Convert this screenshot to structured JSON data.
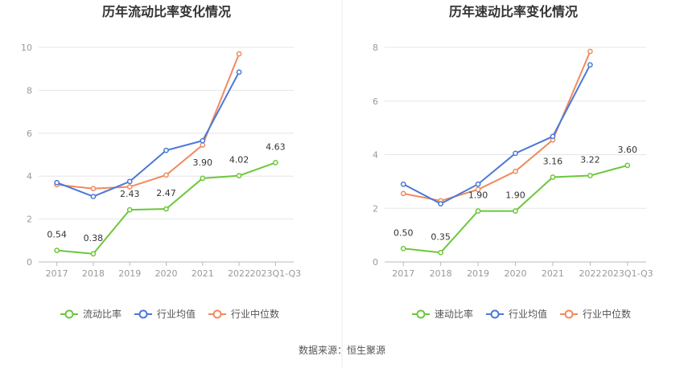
{
  "source": "数据来源：恒生聚源",
  "colors": {
    "company": "#6cc73a",
    "avg": "#4a78d8",
    "median": "#f08a5d",
    "grid": "#e6e6e6",
    "axis": "#bbbbbb"
  },
  "chart_data": [
    {
      "type": "line",
      "title": "历年流动比率变化情况",
      "categories": [
        "2017",
        "2018",
        "2019",
        "2020",
        "2021",
        "2022",
        "2023Q1-Q3"
      ],
      "ylim": [
        0,
        10
      ],
      "yticks": [
        "0",
        "2",
        "4",
        "6",
        "8",
        "10"
      ],
      "grid": true,
      "legend": "bottom",
      "series": [
        {
          "name": "流动比率",
          "color": "#6cc73a",
          "values": [
            0.54,
            0.38,
            2.43,
            2.47,
            3.9,
            4.02,
            4.63
          ],
          "labels": [
            "0.54",
            "0.38",
            "2.43",
            "2.47",
            "3.90",
            "4.02",
            "4.63"
          ]
        },
        {
          "name": "行业均值",
          "color": "#4a78d8",
          "values": [
            3.7,
            3.05,
            3.75,
            5.2,
            5.65,
            8.85,
            null
          ]
        },
        {
          "name": "行业中位数",
          "color": "#f08a5d",
          "values": [
            3.6,
            3.42,
            3.5,
            4.05,
            5.45,
            9.7,
            null
          ]
        }
      ]
    },
    {
      "type": "line",
      "title": "历年速动比率变化情况",
      "categories": [
        "2017",
        "2018",
        "2019",
        "2020",
        "2021",
        "2022",
        "2023Q1-Q3"
      ],
      "ylim": [
        0,
        8
      ],
      "yticks": [
        "0",
        "2",
        "4",
        "6",
        "8"
      ],
      "grid": true,
      "legend": "bottom",
      "series": [
        {
          "name": "速动比率",
          "color": "#6cc73a",
          "values": [
            0.5,
            0.35,
            1.9,
            1.9,
            3.16,
            3.22,
            3.6
          ],
          "labels": [
            "0.50",
            "0.35",
            "1.90",
            "1.90",
            "3.16",
            "3.22",
            "3.60"
          ]
        },
        {
          "name": "行业均值",
          "color": "#4a78d8",
          "values": [
            2.9,
            2.17,
            2.9,
            4.05,
            4.68,
            7.35,
            null
          ]
        },
        {
          "name": "行业中位数",
          "color": "#f08a5d",
          "values": [
            2.55,
            2.28,
            2.7,
            3.38,
            4.55,
            7.85,
            null
          ]
        }
      ]
    }
  ]
}
